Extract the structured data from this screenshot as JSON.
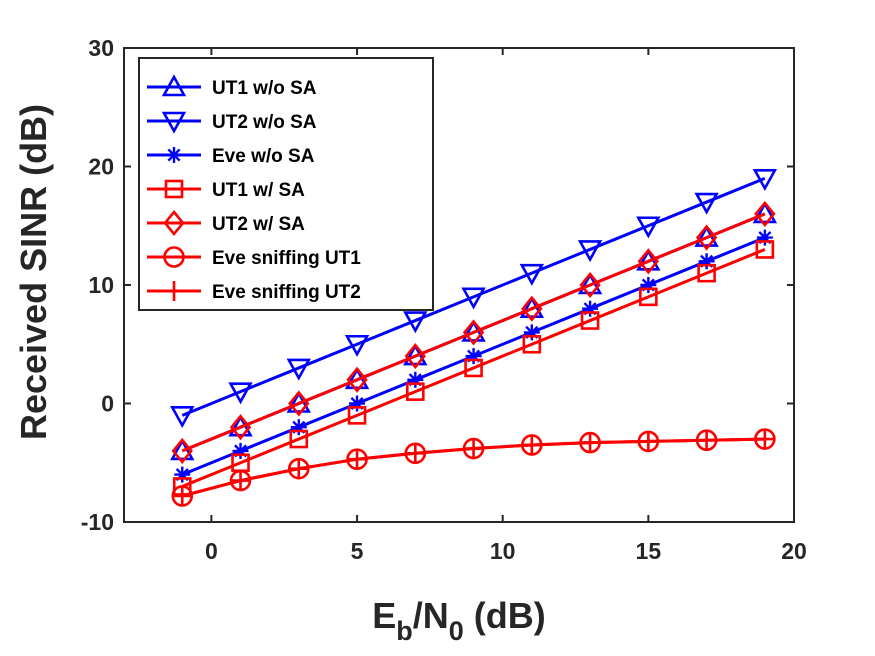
{
  "chart_data": {
    "type": "line",
    "xlabel": {
      "base": "E",
      "sub1": "b",
      "mid": "/N",
      "sub2": "0",
      "tail": " (dB)"
    },
    "ylabel": "Received SINR (dB)",
    "xlim": [
      -3,
      20
    ],
    "ylim": [
      -10,
      30
    ],
    "xticks": [
      0,
      5,
      10,
      15,
      20
    ],
    "yticks": [
      -10,
      0,
      10,
      20,
      30
    ],
    "grid": false,
    "legend_position": "top-left",
    "x": [
      -1,
      1,
      3,
      5,
      7,
      9,
      11,
      13,
      15,
      17,
      19
    ],
    "series": [
      {
        "name": "UT1 w/o SA",
        "color": "#0000ff",
        "marker": "triangle-up",
        "values": [
          -4.0,
          -2.0,
          0.0,
          2.0,
          4.0,
          6.0,
          8.0,
          10.0,
          12.0,
          14.0,
          16.0
        ]
      },
      {
        "name": "UT2 w/o SA",
        "color": "#0000ff",
        "marker": "triangle-down",
        "values": [
          -1.0,
          1.0,
          3.0,
          5.0,
          7.0,
          9.0,
          11.0,
          13.0,
          15.0,
          17.0,
          19.0
        ]
      },
      {
        "name": "Eve w/o SA",
        "color": "#0000ff",
        "marker": "asterisk",
        "values": [
          -6.0,
          -4.0,
          -2.0,
          0.0,
          2.0,
          4.0,
          6.0,
          8.0,
          10.0,
          12.0,
          14.0
        ]
      },
      {
        "name": "UT1 w/ SA",
        "color": "#ff0000",
        "marker": "square",
        "values": [
          -7.0,
          -5.0,
          -3.0,
          -1.0,
          1.0,
          3.0,
          5.0,
          7.0,
          9.0,
          11.0,
          13.0
        ]
      },
      {
        "name": "UT2 w/ SA",
        "color": "#ff0000",
        "marker": "diamond",
        "values": [
          -4.0,
          -2.0,
          0.0,
          2.0,
          4.0,
          6.0,
          8.0,
          10.0,
          12.0,
          14.0,
          16.0
        ]
      },
      {
        "name": "Eve sniffing UT1",
        "color": "#ff0000",
        "marker": "circle",
        "values": [
          -7.8,
          -6.5,
          -5.5,
          -4.7,
          -4.2,
          -3.8,
          -3.5,
          -3.3,
          -3.2,
          -3.1,
          -3.0
        ]
      },
      {
        "name": "Eve sniffing UT2",
        "color": "#ff0000",
        "marker": "plus",
        "values": [
          -7.8,
          -6.5,
          -5.5,
          -4.7,
          -4.2,
          -3.8,
          -3.5,
          -3.3,
          -3.2,
          -3.1,
          -3.0
        ]
      }
    ]
  }
}
